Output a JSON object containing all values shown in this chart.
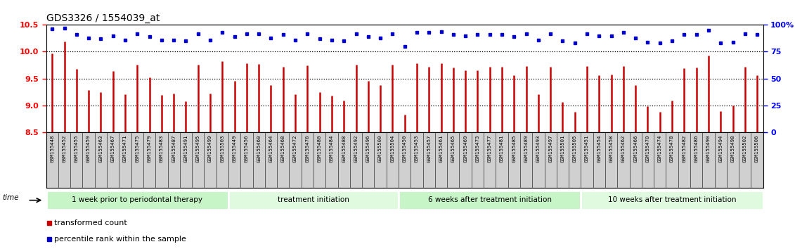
{
  "title": "GDS3326 / 1554039_at",
  "samples": [
    "GSM155448",
    "GSM155452",
    "GSM155455",
    "GSM155459",
    "GSM155463",
    "GSM155467",
    "GSM155471",
    "GSM155475",
    "GSM155479",
    "GSM155483",
    "GSM155487",
    "GSM155491",
    "GSM155495",
    "GSM155499",
    "GSM155503",
    "GSM155449",
    "GSM155456",
    "GSM155460",
    "GSM155464",
    "GSM155468",
    "GSM155472",
    "GSM155476",
    "GSM155480",
    "GSM155484",
    "GSM155488",
    "GSM155492",
    "GSM155496",
    "GSM155500",
    "GSM155504",
    "GSM155450",
    "GSM155453",
    "GSM155457",
    "GSM155461",
    "GSM155465",
    "GSM155469",
    "GSM155473",
    "GSM155477",
    "GSM155481",
    "GSM155485",
    "GSM155489",
    "GSM155493",
    "GSM155497",
    "GSM155501",
    "GSM155505",
    "GSM155451",
    "GSM155454",
    "GSM155458",
    "GSM155462",
    "GSM155466",
    "GSM155470",
    "GSM155474",
    "GSM155478",
    "GSM155482",
    "GSM155486",
    "GSM155490",
    "GSM155494",
    "GSM155498",
    "GSM155502",
    "GSM155506"
  ],
  "bar_values": [
    9.97,
    10.19,
    9.68,
    9.28,
    9.25,
    9.64,
    9.21,
    9.75,
    9.52,
    9.19,
    9.22,
    9.07,
    9.75,
    9.22,
    9.82,
    9.46,
    9.78,
    9.77,
    9.38,
    9.72,
    9.2,
    9.74,
    9.24,
    9.18,
    9.08,
    9.76,
    9.45,
    9.37,
    9.75,
    8.83,
    9.78,
    9.72,
    9.78,
    9.7,
    9.65,
    9.65,
    9.72,
    9.72,
    9.56,
    9.73,
    9.21,
    9.72,
    9.06,
    8.88,
    9.73,
    9.56,
    9.57,
    9.73,
    9.38,
    8.98,
    8.88,
    9.09,
    9.69,
    9.7,
    9.93,
    8.89,
    9.0,
    9.72,
    9.56
  ],
  "percentile_values": [
    96,
    97,
    91,
    88,
    87,
    90,
    86,
    92,
    89,
    86,
    86,
    85,
    92,
    86,
    93,
    89,
    92,
    92,
    88,
    91,
    86,
    92,
    87,
    86,
    85,
    92,
    89,
    88,
    92,
    80,
    93,
    93,
    94,
    91,
    90,
    91,
    91,
    91,
    89,
    92,
    86,
    92,
    85,
    83,
    92,
    90,
    90,
    93,
    88,
    84,
    83,
    85,
    91,
    91,
    95,
    83,
    84,
    92,
    91
  ],
  "group_labels": [
    "1 week prior to periodontal therapy",
    "treatment initiation",
    "6 weeks after treatment initiation",
    "10 weeks after treatment initiation"
  ],
  "group_starts": [
    0,
    15,
    29,
    44
  ],
  "group_ends": [
    15,
    29,
    44,
    59
  ],
  "group_colors": [
    "#c8f5c8",
    "#e0fae0",
    "#c8f5c8",
    "#e0fae0"
  ],
  "ylim_left": [
    8.5,
    10.5
  ],
  "ylim_right": [
    0,
    100
  ],
  "yticks_left": [
    8.5,
    9.0,
    9.5,
    10.0,
    10.5
  ],
  "yticks_right": [
    0,
    25,
    50,
    75,
    100
  ],
  "bar_color": "#cc0000",
  "dot_color": "#0000cc",
  "bar_bottom": 8.5,
  "legend_labels": [
    "transformed count",
    "percentile rank within the sample"
  ],
  "legend_colors": [
    "#cc0000",
    "#0000cc"
  ],
  "xlabel_bg_color": "#d0d0d0",
  "hgrid_lines": [
    9.0,
    9.5,
    10.0
  ]
}
